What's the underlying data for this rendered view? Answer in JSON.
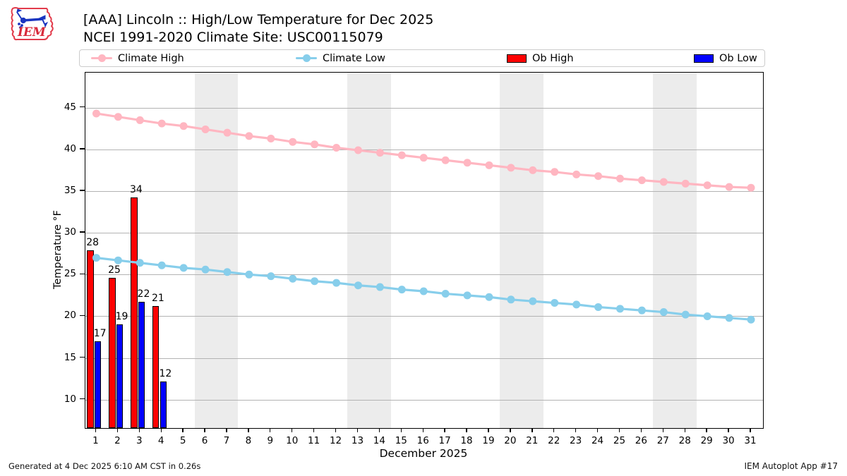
{
  "header": {
    "title": "[AAA] Lincoln :: High/Low Temperature for Dec 2025",
    "subtitle": "NCEI 1991-2020 Climate Site: USC00115079",
    "logo_text": "IEM"
  },
  "legend": {
    "items": [
      {
        "label": "Climate High",
        "type": "line",
        "color": "#ffb6c1"
      },
      {
        "label": "Climate Low",
        "type": "line",
        "color": "#87ceeb"
      },
      {
        "label": "Ob High",
        "type": "box",
        "color": "#ff0000"
      },
      {
        "label": "Ob Low",
        "type": "box",
        "color": "#0000ff"
      }
    ],
    "offsets": [
      16,
      306,
      605,
      870
    ]
  },
  "footer": {
    "generated": "Generated at 4 Dec 2025 6:10 AM CST in 0.26s",
    "app": "IEM Autoplot App #17"
  },
  "chart_data": {
    "type": "line+bar",
    "title": "[AAA] Lincoln :: High/Low Temperature for Dec 2025",
    "subtitle": "NCEI 1991-2020 Climate Site: USC00115079",
    "xlabel": "December 2025",
    "ylabel": "Temperature °F",
    "xlim": [
      0.5,
      31.55
    ],
    "ylim": [
      6.6,
      49.2
    ],
    "grid": "horizontal",
    "grid_color": "#b3b3b3",
    "weekend_band_color": "#ececec",
    "weekend_bands": [
      [
        5.5,
        7.5
      ],
      [
        12.5,
        14.5
      ],
      [
        19.5,
        21.5
      ],
      [
        26.5,
        28.5
      ]
    ],
    "yticks": [
      10,
      15,
      20,
      25,
      30,
      35,
      40,
      45
    ],
    "xticks": [
      1,
      2,
      3,
      4,
      5,
      6,
      7,
      8,
      9,
      10,
      11,
      12,
      13,
      14,
      15,
      16,
      17,
      18,
      19,
      20,
      21,
      22,
      23,
      24,
      25,
      26,
      27,
      28,
      29,
      30,
      31
    ],
    "x": [
      1,
      2,
      3,
      4,
      5,
      6,
      7,
      8,
      9,
      10,
      11,
      12,
      13,
      14,
      15,
      16,
      17,
      18,
      19,
      20,
      21,
      22,
      23,
      24,
      25,
      26,
      27,
      28,
      29,
      30,
      31
    ],
    "series": [
      {
        "name": "Climate High",
        "type": "line",
        "color": "#ffb6c1",
        "values": [
          44.3,
          43.9,
          43.5,
          43.1,
          42.8,
          42.4,
          42.0,
          41.6,
          41.3,
          40.9,
          40.6,
          40.2,
          39.9,
          39.6,
          39.3,
          39.0,
          38.7,
          38.4,
          38.1,
          37.8,
          37.5,
          37.3,
          37.0,
          36.8,
          36.5,
          36.3,
          36.1,
          35.9,
          35.7,
          35.5,
          35.4
        ]
      },
      {
        "name": "Climate Low",
        "type": "line",
        "color": "#87ceeb",
        "values": [
          27.0,
          26.7,
          26.4,
          26.1,
          25.8,
          25.6,
          25.3,
          25.0,
          24.8,
          24.5,
          24.2,
          24.0,
          23.7,
          23.5,
          23.2,
          23.0,
          22.7,
          22.5,
          22.3,
          22.0,
          21.8,
          21.6,
          21.4,
          21.1,
          20.9,
          20.7,
          20.5,
          20.2,
          20.0,
          19.8,
          19.6
        ]
      },
      {
        "name": "Ob High",
        "type": "bar",
        "color": "#ff0000",
        "days": [
          1,
          2,
          3,
          4
        ],
        "values": [
          27.9,
          24.6,
          34.2,
          21.2
        ],
        "labels": [
          "28",
          "25",
          "34",
          "21"
        ],
        "bar_offset": [
          -0.42,
          -0.12
        ]
      },
      {
        "name": "Ob Low",
        "type": "bar",
        "color": "#0000ff",
        "days": [
          1,
          2,
          3,
          4
        ],
        "values": [
          17.0,
          19.0,
          21.7,
          12.2
        ],
        "labels": [
          "17",
          "19",
          "22",
          "12"
        ],
        "bar_offset": [
          -0.08,
          0.22
        ]
      }
    ]
  }
}
